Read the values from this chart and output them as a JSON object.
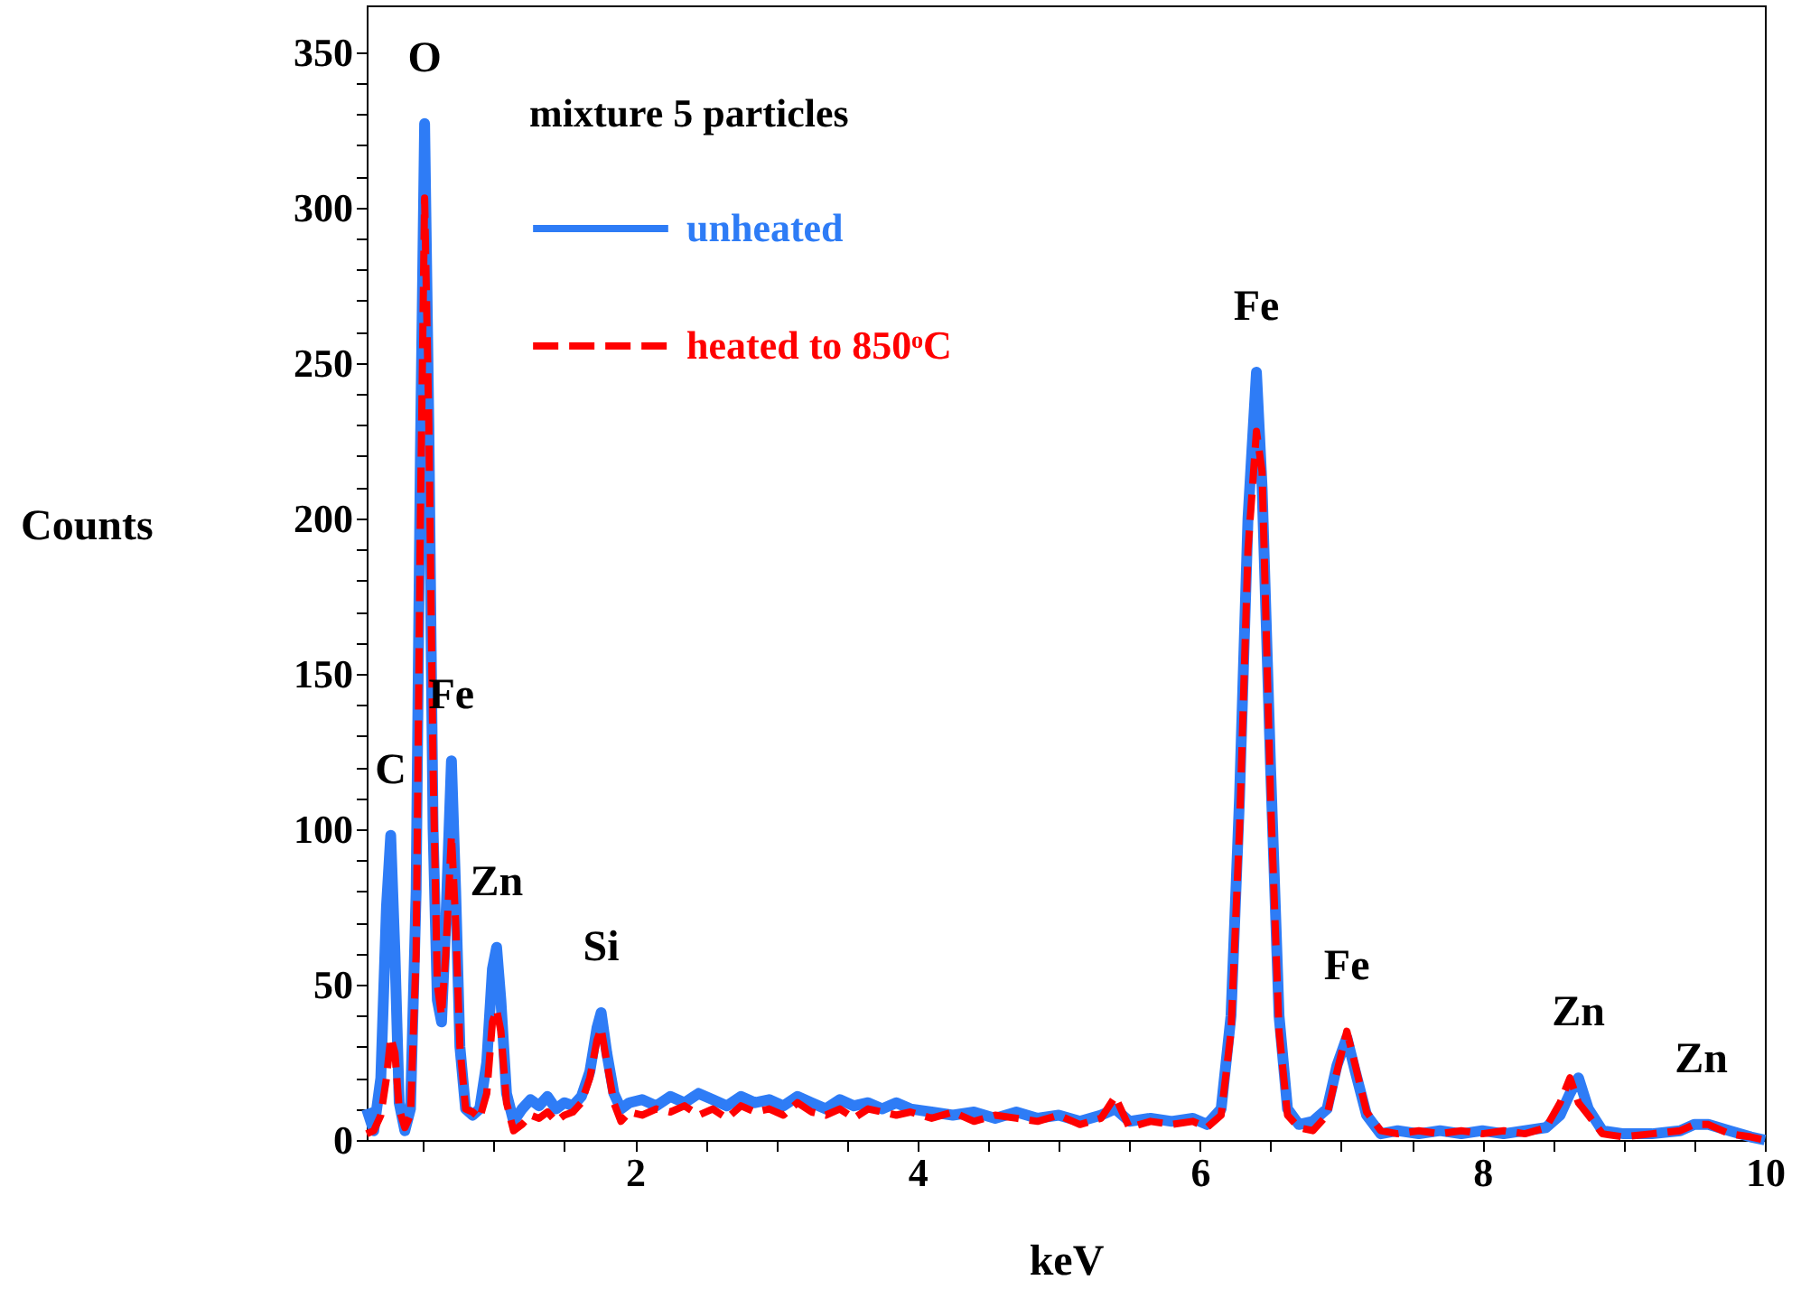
{
  "chart_data": {
    "type": "line",
    "xlabel": "keV",
    "ylabel": "Counts",
    "legend_title": "mixture 5 particles",
    "legend": "top left",
    "grid": false,
    "xlim": [
      0.1,
      10
    ],
    "ylim": [
      0,
      365
    ],
    "xticks": [
      {
        "value": 0.5,
        "label": null
      },
      {
        "value": 1,
        "label": null
      },
      {
        "value": 1.5,
        "label": null
      },
      2,
      {
        "value": 2.5,
        "label": null
      },
      {
        "value": 3,
        "label": null
      },
      {
        "value": 3.5,
        "label": null
      },
      4,
      {
        "value": 4.5,
        "label": null
      },
      {
        "value": 5,
        "label": null
      },
      {
        "value": 5.5,
        "label": null
      },
      6,
      {
        "value": 6.5,
        "label": null
      },
      {
        "value": 7,
        "label": null
      },
      {
        "value": 7.5,
        "label": null
      },
      8,
      {
        "value": 8.5,
        "label": null
      },
      {
        "value": 9,
        "label": null
      },
      {
        "value": 9.5,
        "label": null
      },
      10
    ],
    "yticks": [
      0,
      {
        "value": 10,
        "label": null
      },
      {
        "value": 20,
        "label": null
      },
      {
        "value": 30,
        "label": null
      },
      {
        "value": 40,
        "label": null
      },
      50,
      {
        "value": 60,
        "label": null
      },
      {
        "value": 70,
        "label": null
      },
      {
        "value": 80,
        "label": null
      },
      {
        "value": 90,
        "label": null
      },
      100,
      {
        "value": 110,
        "label": null
      },
      {
        "value": 120,
        "label": null
      },
      {
        "value": 130,
        "label": null
      },
      {
        "value": 140,
        "label": null
      },
      150,
      {
        "value": 160,
        "label": null
      },
      {
        "value": 170,
        "label": null
      },
      {
        "value": 180,
        "label": null
      },
      {
        "value": 190,
        "label": null
      },
      200,
      {
        "value": 210,
        "label": null
      },
      {
        "value": 220,
        "label": null
      },
      {
        "value": 230,
        "label": null
      },
      {
        "value": 240,
        "label": null
      },
      250,
      {
        "value": 260,
        "label": null
      },
      {
        "value": 270,
        "label": null
      },
      {
        "value": 280,
        "label": null
      },
      {
        "value": 290,
        "label": null
      },
      300,
      {
        "value": 310,
        "label": null
      },
      {
        "value": 320,
        "label": null
      },
      {
        "value": 330,
        "label": null
      },
      {
        "value": 340,
        "label": null
      },
      350
    ],
    "x": [
      0.1,
      0.15,
      0.2,
      0.24,
      0.27,
      0.3,
      0.33,
      0.37,
      0.41,
      0.45,
      0.48,
      0.51,
      0.54,
      0.57,
      0.6,
      0.63,
      0.66,
      0.7,
      0.73,
      0.76,
      0.8,
      0.85,
      0.9,
      0.95,
      0.99,
      1.02,
      1.05,
      1.09,
      1.14,
      1.2,
      1.26,
      1.32,
      1.38,
      1.44,
      1.5,
      1.56,
      1.62,
      1.68,
      1.73,
      1.76,
      1.8,
      1.85,
      1.9,
      1.96,
      2.05,
      2.15,
      2.25,
      2.35,
      2.45,
      2.55,
      2.65,
      2.75,
      2.85,
      2.95,
      3.05,
      3.15,
      3.25,
      3.35,
      3.45,
      3.55,
      3.65,
      3.75,
      3.85,
      3.95,
      4.1,
      4.25,
      4.4,
      4.55,
      4.7,
      4.85,
      5.0,
      5.15,
      5.3,
      5.4,
      5.5,
      5.65,
      5.8,
      5.95,
      6.05,
      6.15,
      6.22,
      6.28,
      6.34,
      6.4,
      6.44,
      6.5,
      6.56,
      6.62,
      6.7,
      6.8,
      6.9,
      6.97,
      7.04,
      7.1,
      7.18,
      7.28,
      7.4,
      7.55,
      7.7,
      7.85,
      8.0,
      8.15,
      8.3,
      8.45,
      8.55,
      8.62,
      8.68,
      8.75,
      8.85,
      9.0,
      9.2,
      9.4,
      9.5,
      9.6,
      9.75,
      9.9,
      10.0
    ],
    "series": [
      {
        "name": "unheated",
        "color": "#2e7cf6",
        "line_style": "solid",
        "values": [
          10,
          3,
          20,
          75,
          98,
          60,
          12,
          3,
          10,
          80,
          220,
          327,
          230,
          100,
          45,
          38,
          70,
          122,
          80,
          30,
          10,
          8,
          10,
          25,
          55,
          62,
          45,
          15,
          6,
          10,
          13,
          11,
          14,
          10,
          12,
          11,
          14,
          22,
          36,
          41,
          28,
          15,
          10,
          12,
          13,
          11,
          14,
          12,
          15,
          13,
          11,
          14,
          12,
          13,
          11,
          14,
          12,
          10,
          13,
          11,
          12,
          10,
          12,
          10,
          9,
          8,
          9,
          7,
          9,
          7,
          8,
          6,
          8,
          10,
          6,
          7,
          6,
          7,
          5,
          10,
          40,
          110,
          200,
          247,
          210,
          120,
          40,
          10,
          5,
          6,
          10,
          24,
          33,
          22,
          8,
          2,
          3,
          2,
          3,
          2,
          3,
          2,
          3,
          4,
          8,
          15,
          20,
          10,
          3,
          2,
          2,
          3,
          5,
          5,
          3,
          1,
          0
        ]
      },
      {
        "name": "heated to 850ᵒC",
        "color": "#ff0000",
        "line_style": "dashed",
        "values": [
          2,
          3,
          8,
          20,
          33,
          28,
          10,
          4,
          8,
          60,
          200,
          303,
          230,
          120,
          50,
          40,
          60,
          98,
          70,
          30,
          10,
          9,
          7,
          15,
          38,
          42,
          35,
          12,
          3,
          5,
          8,
          7,
          9,
          6,
          8,
          9,
          12,
          20,
          32,
          36,
          25,
          12,
          6,
          9,
          8,
          10,
          9,
          11,
          8,
          10,
          7,
          11,
          9,
          10,
          8,
          12,
          9,
          8,
          10,
          7,
          10,
          9,
          8,
          9,
          7,
          9,
          6,
          8,
          7,
          6,
          8,
          5,
          7,
          14,
          4,
          6,
          5,
          6,
          4,
          8,
          35,
          100,
          190,
          228,
          215,
          110,
          35,
          8,
          4,
          3,
          8,
          22,
          35,
          24,
          9,
          3,
          2,
          3,
          2,
          3,
          2,
          3,
          2,
          4,
          12,
          20,
          12,
          8,
          2,
          1,
          2,
          3,
          5,
          5,
          2,
          1,
          0
        ]
      }
    ],
    "annotations": [
      {
        "text": "C",
        "x": 0.27,
        "y": 98
      },
      {
        "text": "O",
        "x": 0.51,
        "y": 327
      },
      {
        "text": "Fe",
        "x": 0.7,
        "y": 122
      },
      {
        "text": "Zn",
        "x": 1.02,
        "y": 62
      },
      {
        "text": "Si",
        "x": 1.76,
        "y": 41
      },
      {
        "text": "Fe",
        "x": 6.4,
        "y": 247
      },
      {
        "text": "Fe",
        "x": 7.04,
        "y": 35
      },
      {
        "text": "Zn",
        "x": 8.68,
        "y": 20
      },
      {
        "text": "Zn",
        "x": 9.55,
        "y": 5
      }
    ]
  }
}
